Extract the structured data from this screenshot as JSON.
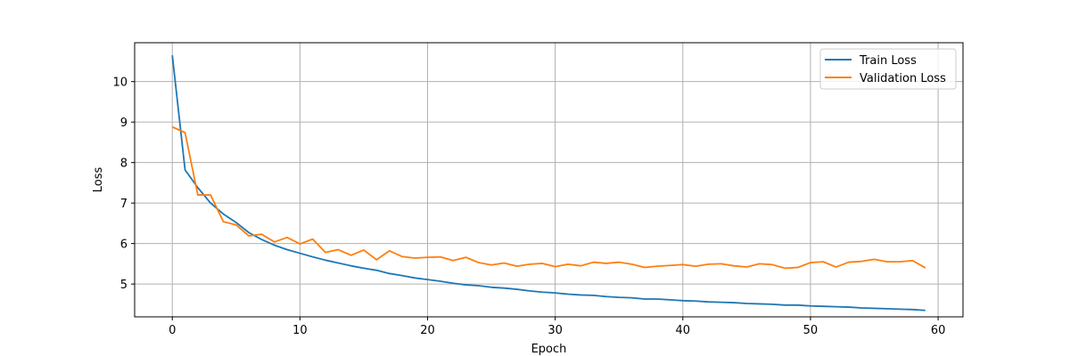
{
  "chart_data": {
    "type": "line",
    "title": "",
    "xlabel": "Epoch",
    "ylabel": "Loss",
    "xlim": [
      -2.95,
      61.95
    ],
    "ylim": [
      4.19,
      10.96
    ],
    "xticks": [
      0,
      10,
      20,
      30,
      40,
      50,
      60
    ],
    "yticks": [
      5,
      6,
      7,
      8,
      9,
      10
    ],
    "grid": true,
    "legend_position": "top-right",
    "series": [
      {
        "name": "Train Loss",
        "color": "#1f77b4",
        "x": [
          0,
          1,
          2,
          3,
          4,
          5,
          6,
          7,
          8,
          9,
          10,
          11,
          12,
          13,
          14,
          15,
          16,
          17,
          18,
          19,
          20,
          21,
          22,
          23,
          24,
          25,
          26,
          27,
          28,
          29,
          30,
          31,
          32,
          33,
          34,
          35,
          36,
          37,
          38,
          39,
          40,
          41,
          42,
          43,
          44,
          45,
          46,
          47,
          48,
          49,
          50,
          51,
          52,
          53,
          54,
          55,
          56,
          57,
          58,
          59
        ],
        "values": [
          10.65,
          7.82,
          7.38,
          7.0,
          6.73,
          6.52,
          6.27,
          6.1,
          5.96,
          5.85,
          5.76,
          5.67,
          5.59,
          5.52,
          5.45,
          5.39,
          5.34,
          5.26,
          5.21,
          5.15,
          5.11,
          5.07,
          5.02,
          4.98,
          4.96,
          4.92,
          4.9,
          4.87,
          4.83,
          4.8,
          4.78,
          4.75,
          4.73,
          4.72,
          4.69,
          4.67,
          4.66,
          4.63,
          4.63,
          4.61,
          4.59,
          4.58,
          4.56,
          4.55,
          4.54,
          4.52,
          4.51,
          4.5,
          4.48,
          4.48,
          4.46,
          4.45,
          4.44,
          4.43,
          4.41,
          4.4,
          4.39,
          4.38,
          4.37,
          4.35
        ]
      },
      {
        "name": "Validation Loss",
        "color": "#ff7f0e",
        "x": [
          0,
          1,
          2,
          3,
          4,
          5,
          6,
          7,
          8,
          9,
          10,
          11,
          12,
          13,
          14,
          15,
          16,
          17,
          18,
          19,
          20,
          21,
          22,
          23,
          24,
          25,
          26,
          27,
          28,
          29,
          30,
          31,
          32,
          33,
          34,
          35,
          36,
          37,
          38,
          39,
          40,
          41,
          42,
          43,
          44,
          45,
          46,
          47,
          48,
          49,
          50,
          51,
          52,
          53,
          54,
          55,
          56,
          57,
          58,
          59
        ],
        "values": [
          8.88,
          8.74,
          7.2,
          7.2,
          6.54,
          6.46,
          6.19,
          6.23,
          6.04,
          6.15,
          5.99,
          6.11,
          5.78,
          5.85,
          5.71,
          5.84,
          5.6,
          5.82,
          5.68,
          5.64,
          5.66,
          5.67,
          5.58,
          5.66,
          5.53,
          5.47,
          5.52,
          5.44,
          5.49,
          5.51,
          5.43,
          5.49,
          5.45,
          5.54,
          5.51,
          5.54,
          5.49,
          5.41,
          5.44,
          5.46,
          5.48,
          5.44,
          5.49,
          5.5,
          5.45,
          5.42,
          5.5,
          5.48,
          5.39,
          5.41,
          5.53,
          5.55,
          5.42,
          5.54,
          5.56,
          5.61,
          5.55,
          5.55,
          5.58,
          5.4
        ]
      }
    ]
  }
}
